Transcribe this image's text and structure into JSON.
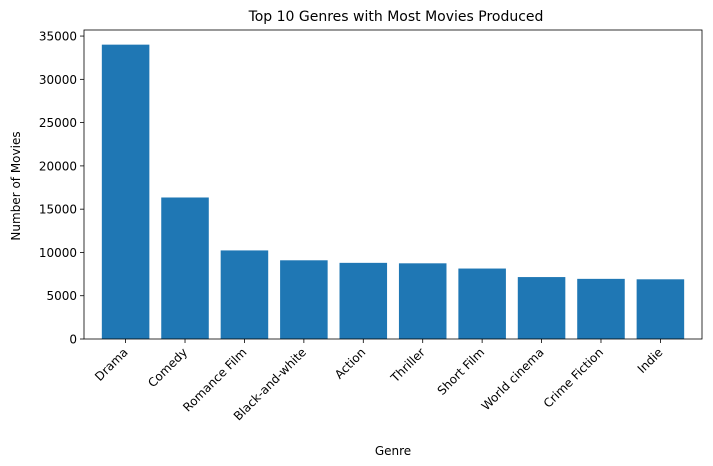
{
  "chart_data": {
    "type": "bar",
    "title": "Top 10 Genres with Most Movies Produced",
    "xlabel": "Genre",
    "ylabel": "Number of Movies",
    "categories": [
      "Drama",
      "Comedy",
      "Romance Film",
      "Black-and-white",
      "Action",
      "Thriller",
      "Short Film",
      "World cinema",
      "Crime Fiction",
      "Indie"
    ],
    "values": [
      34007,
      16349,
      10234,
      9094,
      8798,
      8744,
      8141,
      7155,
      6948,
      6897
    ],
    "ylim": [
      0,
      35700
    ],
    "yticks": [
      0,
      5000,
      10000,
      15000,
      20000,
      25000,
      30000,
      35000
    ],
    "bar_color": "#1f77b4",
    "grid": false,
    "legend": "none"
  }
}
